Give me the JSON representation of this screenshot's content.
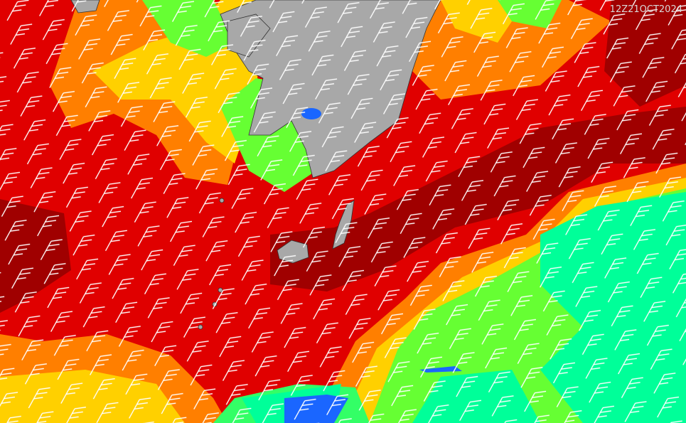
{
  "map": {
    "timestamp": "12Z21OCT2024"
  }
}
